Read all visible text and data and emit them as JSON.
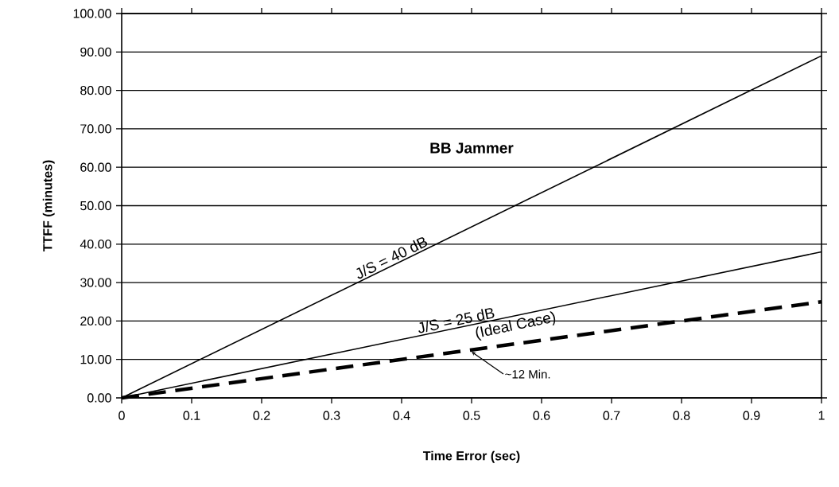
{
  "chart_data": {
    "type": "line",
    "title": "BB Jammer",
    "xlabel": "Time Error (sec)",
    "ylabel": "TTFF (minutes)",
    "x": [
      0,
      1
    ],
    "series": [
      {
        "name": "J/S = 40 dB",
        "color": "#000000",
        "values": [
          0,
          89
        ]
      },
      {
        "name": "J/S = 25 dB",
        "color": "#000000",
        "values": [
          0,
          38
        ]
      },
      {
        "color": "#000000",
        "values": [
          0,
          25
        ],
        "line_style": "dashed"
      }
    ],
    "annotations": [
      "(Ideal Case)",
      {
        "text": "~12 Min.",
        "x": 0.5,
        "y": 12
      }
    ],
    "xlim": [
      0,
      1
    ],
    "xticks": [
      0,
      0.1,
      0.2,
      0.3,
      0.4,
      0.5,
      0.6,
      0.7,
      0.8,
      0.9,
      1
    ],
    "ylim": [
      0,
      100
    ],
    "yticks": [
      {
        "value": 0,
        "label": "0.00"
      },
      {
        "value": 10,
        "label": "10.00"
      },
      {
        "value": 20,
        "label": "20.00"
      },
      {
        "value": 30,
        "label": "30.00"
      },
      {
        "value": 40,
        "label": "40.00"
      },
      {
        "value": 50,
        "label": "50.00"
      },
      {
        "value": 60,
        "label": "60.00"
      },
      {
        "value": 70,
        "label": "70.00"
      },
      {
        "value": 80,
        "label": "80.00"
      },
      {
        "value": 90,
        "label": "90.00"
      },
      {
        "value": 100,
        "label": "100.00"
      }
    ],
    "grid": "y",
    "line_style": "solid",
    "marker": "none",
    "legend": false
  }
}
